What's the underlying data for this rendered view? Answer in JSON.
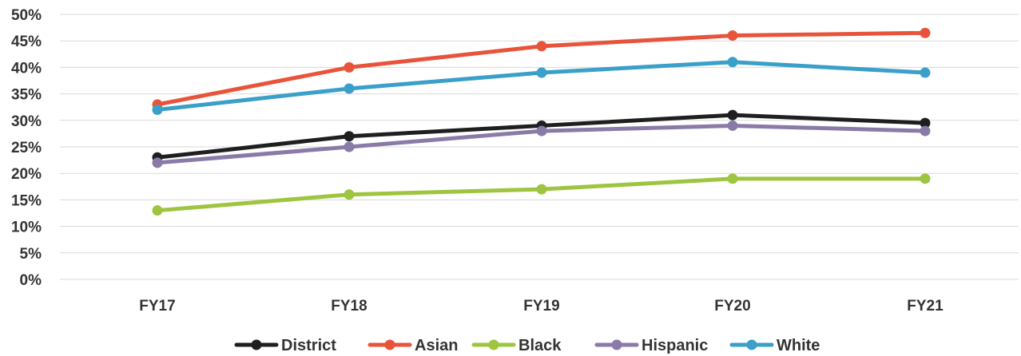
{
  "chart_data": {
    "type": "line",
    "title": "",
    "xlabel": "",
    "ylabel": "",
    "categories": [
      "FY17",
      "FY18",
      "FY19",
      "FY20",
      "FY21"
    ],
    "ylim": [
      0,
      50
    ],
    "ytick_values": [
      0,
      5,
      10,
      15,
      20,
      25,
      30,
      35,
      40,
      45,
      50
    ],
    "ytick_labels": [
      "0%",
      "5%",
      "10%",
      "15%",
      "20%",
      "25%",
      "30%",
      "35%",
      "40%",
      "45%",
      "50%"
    ],
    "grid": true,
    "legend_position": "bottom",
    "series": [
      {
        "name": "District",
        "color": "#1f1f1f",
        "values": [
          23,
          27,
          29,
          31,
          29.5
        ]
      },
      {
        "name": "Asian",
        "color": "#e8543b",
        "values": [
          33,
          40,
          44,
          46,
          46.5
        ]
      },
      {
        "name": "Black",
        "color": "#9dc53f",
        "values": [
          13,
          16,
          17,
          19,
          19
        ]
      },
      {
        "name": "Hispanic",
        "color": "#8a7aa8",
        "values": [
          22,
          25,
          28,
          29,
          28
        ]
      },
      {
        "name": "White",
        "color": "#3a9fc9",
        "values": [
          32,
          36,
          39,
          41,
          39
        ]
      }
    ]
  }
}
